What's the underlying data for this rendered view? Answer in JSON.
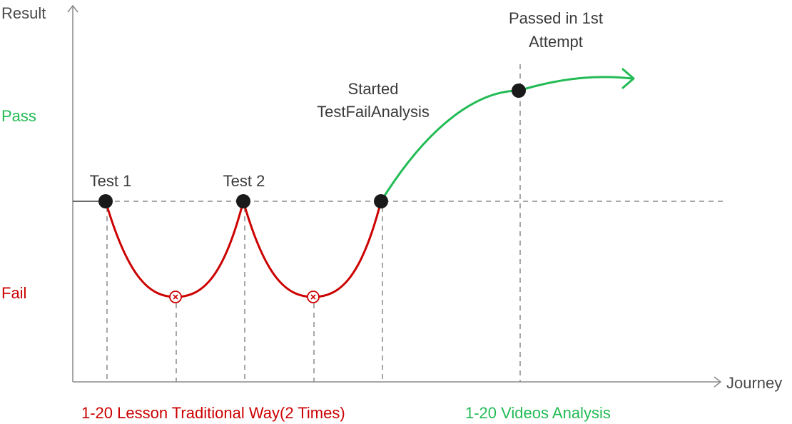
{
  "axes": {
    "y_label": "Result",
    "x_label": "Journey",
    "pass_label": "Pass",
    "fail_label": "Fail"
  },
  "points": {
    "test1": "Test 1",
    "test2": "Test 2",
    "started_line1": "Started",
    "started_line2": "TestFailAnalysis",
    "passed_line1": "Passed in 1st",
    "passed_line2": "Attempt"
  },
  "phases": {
    "traditional": "1-20 Lesson Traditional Way(2 Times)",
    "videos": "1-20 Videos Analysis"
  },
  "colors": {
    "fail": "#cc0000",
    "pass": "#22bb55",
    "dot": "#1a1a1a",
    "axis": "#8a8a8a",
    "grid": "#8a8a8a"
  },
  "icons": {
    "fail_marker": "x-circle-icon",
    "arrow": "arrow-right-icon"
  }
}
